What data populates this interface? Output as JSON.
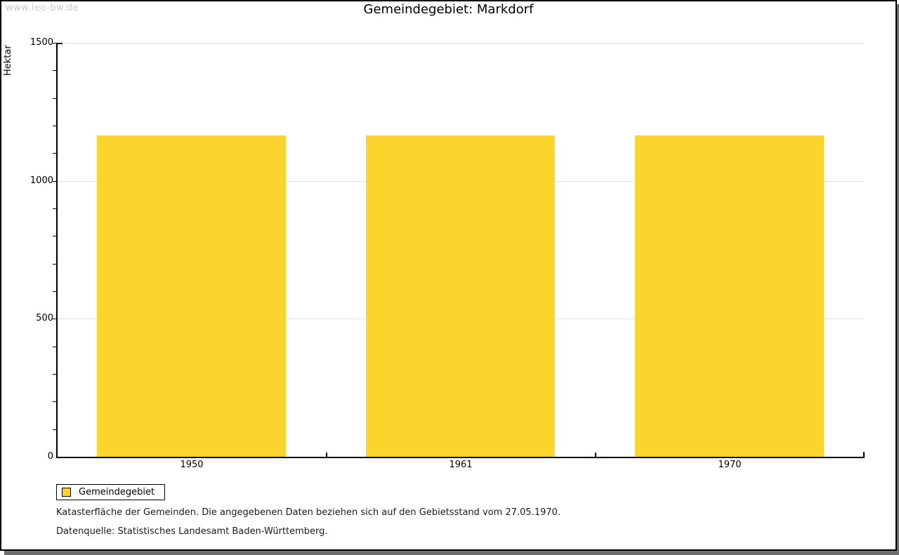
{
  "watermark": "www.leo-bw.de",
  "title": "Gemeindegebiet: Markdorf",
  "legend": {
    "label": "Gemeindegebiet"
  },
  "footer": {
    "line1": "Katasterfläche der Gemeinden. Die angegebenen Daten beziehen sich auf den Gebietsstand vom 27.05.1970.",
    "line2": "Datenquelle: Statistisches Landesamt Baden-Württemberg."
  },
  "colors": {
    "bar": "#fcd42e",
    "grid": "#e0e0e0",
    "axis": "#000000",
    "watermark": "#c9c9c9",
    "frame_shadow": "#6e6e6e"
  },
  "chart_data": {
    "type": "bar",
    "title": "Gemeindegebiet: Markdorf",
    "xlabel": "",
    "ylabel": "Hektar",
    "categories": [
      "1950",
      "1961",
      "1970"
    ],
    "series": [
      {
        "name": "Gemeindegebiet",
        "values": [
          1165,
          1165,
          1165
        ]
      }
    ],
    "ylim": [
      0,
      1500
    ],
    "y_major_ticks": [
      0,
      500,
      1000,
      1500
    ],
    "y_minor_tick_interval": 100,
    "grid": true,
    "legend_position": "bottom-left"
  }
}
